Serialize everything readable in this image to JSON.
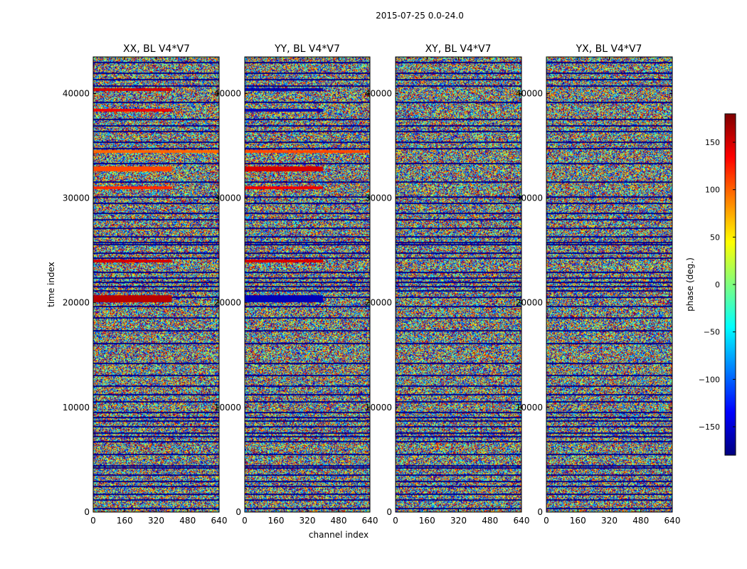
{
  "figure": {
    "suptitle": "2015-07-25 0.0-24.0",
    "ylabel": "time index",
    "xlabel": "channel index"
  },
  "chart_data": {
    "type": "heatmap",
    "title": "2015-07-25 0.0-24.0",
    "xlabel": "channel index",
    "ylabel": "time index",
    "xlim": [
      0,
      640
    ],
    "ylim": [
      0,
      43500
    ],
    "x_ticks": [
      0,
      160,
      320,
      480,
      640
    ],
    "x_tick_labels": [
      "0",
      "160",
      "320",
      "480",
      "640"
    ],
    "y_ticks": [
      0,
      10000,
      20000,
      30000,
      40000
    ],
    "y_tick_labels": [
      "0",
      "10000",
      "20000",
      "30000",
      "40000"
    ],
    "colormap": "jet",
    "colorbar": {
      "label": "phase (deg.)",
      "range": [
        -180,
        180
      ],
      "ticks": [
        -150,
        -100,
        -50,
        0,
        50,
        100,
        150
      ],
      "tick_labels": [
        "−150",
        "−100",
        "−50",
        "0",
        "50",
        "100",
        "150"
      ]
    },
    "panels": [
      {
        "title": "XX, BL V4*V7",
        "bands": [
          {
            "t": 40200,
            "h": 300,
            "x_end": 400,
            "phase": 150
          },
          {
            "t": 38300,
            "h": 250,
            "x_end": 400,
            "phase": 140
          },
          {
            "t": 34300,
            "h": 300,
            "x_end": 640,
            "phase": 100
          },
          {
            "t": 32500,
            "h": 500,
            "x_end": 400,
            "phase": 110
          },
          {
            "t": 30800,
            "h": 300,
            "x_end": 400,
            "phase": 120
          },
          {
            "t": 23800,
            "h": 300,
            "x_end": 400,
            "phase": 150
          },
          {
            "t": 20000,
            "h": 700,
            "x_end": 400,
            "phase": 160
          }
        ]
      },
      {
        "title": "YY, BL V4*V7",
        "bands": [
          {
            "t": 40200,
            "h": 300,
            "x_end": 400,
            "phase": -165
          },
          {
            "t": 38300,
            "h": 250,
            "x_end": 400,
            "phase": -160
          },
          {
            "t": 34300,
            "h": 300,
            "x_end": 640,
            "phase": 110
          },
          {
            "t": 32500,
            "h": 500,
            "x_end": 400,
            "phase": 150
          },
          {
            "t": 30800,
            "h": 300,
            "x_end": 400,
            "phase": 140
          },
          {
            "t": 23800,
            "h": 300,
            "x_end": 400,
            "phase": 150
          },
          {
            "t": 20000,
            "h": 700,
            "x_end": 400,
            "phase": -160
          }
        ]
      },
      {
        "title": "XY, BL V4*V7",
        "bands": []
      },
      {
        "title": "YX, BL V4*V7",
        "bands": []
      }
    ],
    "flagged_rows": [
      43000,
      42000,
      41400,
      40800,
      39200,
      37600,
      37000,
      36400,
      35400,
      34800,
      33400,
      31600,
      30200,
      29600,
      28600,
      28000,
      27200,
      26400,
      25800,
      25600,
      24800,
      24300,
      23000,
      22400,
      22000,
      21600,
      21200,
      20600,
      19700,
      18600,
      17400,
      16200,
      14300,
      13100,
      12100,
      11300,
      10600,
      9600,
      9100,
      8800,
      8200,
      7600,
      7300,
      6800,
      5600,
      4500,
      4300,
      3600,
      3000,
      2500,
      1800,
      1200,
      400
    ]
  }
}
